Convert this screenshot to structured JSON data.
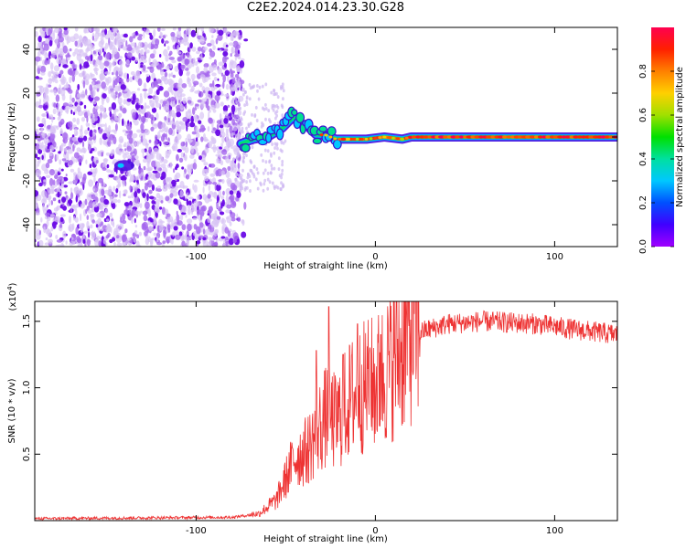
{
  "title": "C2E2.2024.014.23.30.G28",
  "chart_data": [
    {
      "type": "heatmap",
      "xlabel": "Height of straight line (km)",
      "ylabel": "Frequency (Hz)",
      "xlim": [
        -190,
        135
      ],
      "ylim": [
        -50,
        50
      ],
      "xticks": [
        -100,
        0,
        100
      ],
      "yticks": [
        -40,
        -20,
        0,
        20,
        40
      ],
      "colorbar": {
        "label": "Normalized spectral amplitude",
        "range": [
          0.0,
          1.0
        ],
        "ticks": [
          0.0,
          0.2,
          0.4,
          0.6,
          0.8
        ],
        "colormap": [
          "#a000ff",
          "#4000ff",
          "#0050ff",
          "#00c8ff",
          "#00e0a0",
          "#00e000",
          "#a0e000",
          "#ffd000",
          "#ff8000",
          "#ff2000",
          "#ff0050"
        ]
      },
      "noise_region_x": [
        -190,
        -75
      ],
      "ridge": [
        {
          "x": -75,
          "y": -3
        },
        {
          "x": -68,
          "y": -1
        },
        {
          "x": -60,
          "y": 0
        },
        {
          "x": -52,
          "y": 4
        },
        {
          "x": -46,
          "y": 9
        },
        {
          "x": -42,
          "y": 6
        },
        {
          "x": -38,
          "y": 5
        },
        {
          "x": -33,
          "y": 1
        },
        {
          "x": -28,
          "y": 1
        },
        {
          "x": -22,
          "y": -1
        },
        {
          "x": -15,
          "y": -1
        },
        {
          "x": -5,
          "y": -1
        },
        {
          "x": 5,
          "y": 0
        },
        {
          "x": 15,
          "y": -1
        },
        {
          "x": 20,
          "y": 0
        },
        {
          "x": 40,
          "y": 0
        },
        {
          "x": 60,
          "y": 0
        },
        {
          "x": 80,
          "y": 0
        },
        {
          "x": 100,
          "y": 0
        },
        {
          "x": 120,
          "y": 0
        },
        {
          "x": 135,
          "y": 0
        }
      ],
      "side_blob": {
        "x": -140,
        "y": -13
      }
    },
    {
      "type": "line",
      "xlabel": "Height of straight line (km)",
      "ylabel": "SNR (10 * v/v)",
      "y_multiplier": "(x10",
      "y_multiplier_exp": "4",
      "y_multiplier_close": ")",
      "xlim": [
        -190,
        135
      ],
      "ylim": [
        0,
        16500
      ],
      "xticks": [
        -100,
        0,
        100
      ],
      "yticks": [
        5000,
        10000,
        15000
      ],
      "ytick_labels": [
        "0.5",
        "1.0",
        "1.5"
      ],
      "series": [
        {
          "color": "#ee3333",
          "envelope": [
            {
              "x": -190,
              "y": 150
            },
            {
              "x": -80,
              "y": 250
            },
            {
              "x": -65,
              "y": 500
            },
            {
              "x": -55,
              "y": 1500
            },
            {
              "x": -45,
              "y": 4500
            },
            {
              "x": -38,
              "y": 5000
            },
            {
              "x": -32,
              "y": 6500
            },
            {
              "x": -27,
              "y": 7500
            },
            {
              "x": -22,
              "y": 7000
            },
            {
              "x": -15,
              "y": 8500
            },
            {
              "x": -10,
              "y": 9200
            },
            {
              "x": -5,
              "y": 9600
            },
            {
              "x": 0,
              "y": 9800
            },
            {
              "x": 5,
              "y": 10500
            },
            {
              "x": 10,
              "y": 11500
            },
            {
              "x": 15,
              "y": 12500
            },
            {
              "x": 20,
              "y": 13500
            },
            {
              "x": 25,
              "y": 14200
            },
            {
              "x": 40,
              "y": 14800
            },
            {
              "x": 60,
              "y": 15000
            },
            {
              "x": 90,
              "y": 14800
            },
            {
              "x": 110,
              "y": 14400
            },
            {
              "x": 135,
              "y": 14000
            }
          ],
          "spikes": [
            {
              "x": -33,
              "y": 12800
            },
            {
              "x": -26,
              "y": 16100
            },
            {
              "x": -18,
              "y": 12500
            },
            {
              "x": -10,
              "y": 14800
            },
            {
              "x": -3,
              "y": 13000
            },
            {
              "x": 3,
              "y": 14000
            }
          ]
        }
      ]
    }
  ]
}
